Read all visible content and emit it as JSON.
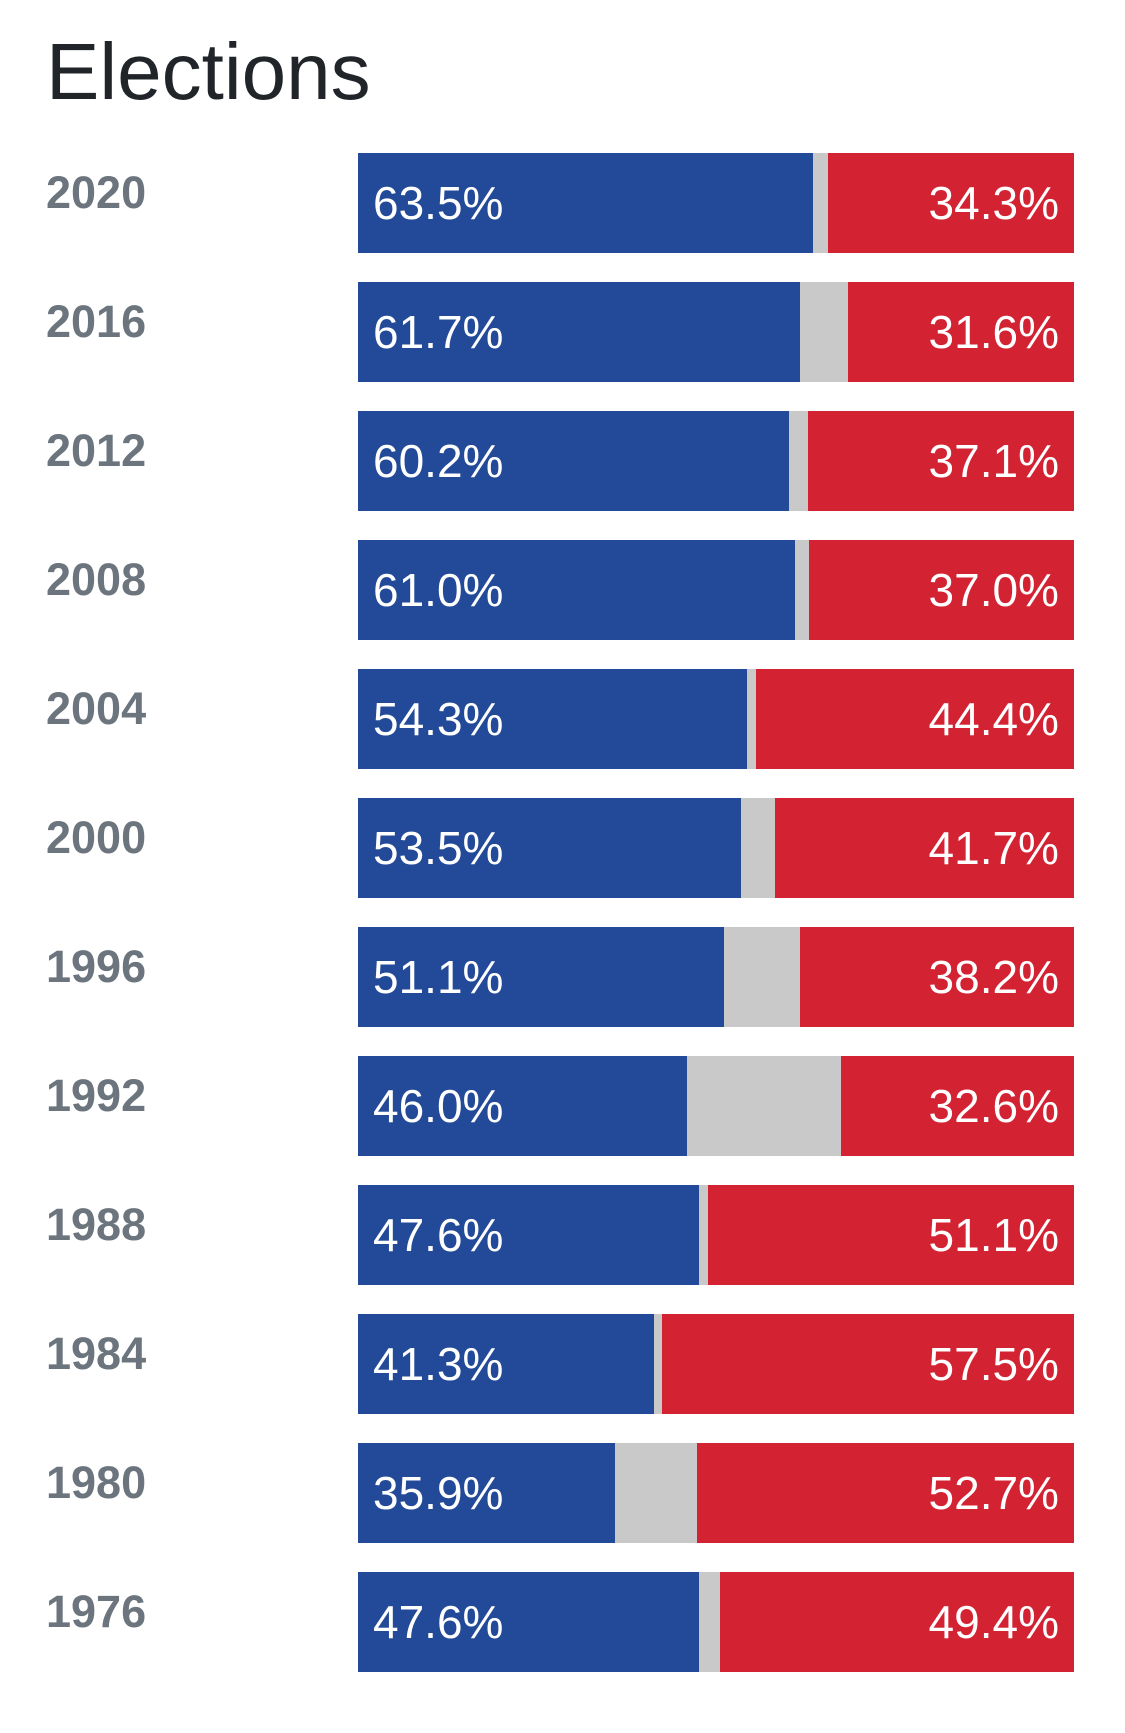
{
  "title": "Elections",
  "colors": {
    "dem": "#234a98",
    "rep": "#d32232",
    "other": "#c9c9c9",
    "year_text": "#6c757d",
    "title_text": "#212529"
  },
  "chart_data": {
    "type": "bar",
    "stacked": true,
    "orientation": "horizontal",
    "categories": [
      "2020",
      "2016",
      "2012",
      "2008",
      "2004",
      "2000",
      "1996",
      "1992",
      "1988",
      "1984",
      "1980",
      "1976"
    ],
    "series": [
      {
        "values": [
          63.5,
          61.7,
          60.2,
          61.0,
          54.3,
          53.5,
          51.1,
          46.0,
          47.6,
          41.3,
          35.9,
          47.6
        ],
        "labels": [
          "63.5%",
          "61.7%",
          "60.2%",
          "61.0%",
          "54.3%",
          "53.5%",
          "51.1%",
          "46.0%",
          "47.6%",
          "41.3%",
          "35.9%",
          "47.6%"
        ]
      },
      {
        "values": [
          2.2,
          6.7,
          2.7,
          2.0,
          1.3,
          4.8,
          10.7,
          21.4,
          1.3,
          1.2,
          11.4,
          3.0
        ]
      },
      {
        "values": [
          34.3,
          31.6,
          37.1,
          37.0,
          44.4,
          41.7,
          38.2,
          32.6,
          51.1,
          57.5,
          52.7,
          49.4
        ],
        "labels": [
          "34.3%",
          "31.6%",
          "37.1%",
          "37.0%",
          "44.4%",
          "41.7%",
          "38.2%",
          "32.6%",
          "51.1%",
          "57.5%",
          "52.7%",
          "49.4%"
        ]
      }
    ],
    "xlim": [
      0,
      100
    ]
  }
}
